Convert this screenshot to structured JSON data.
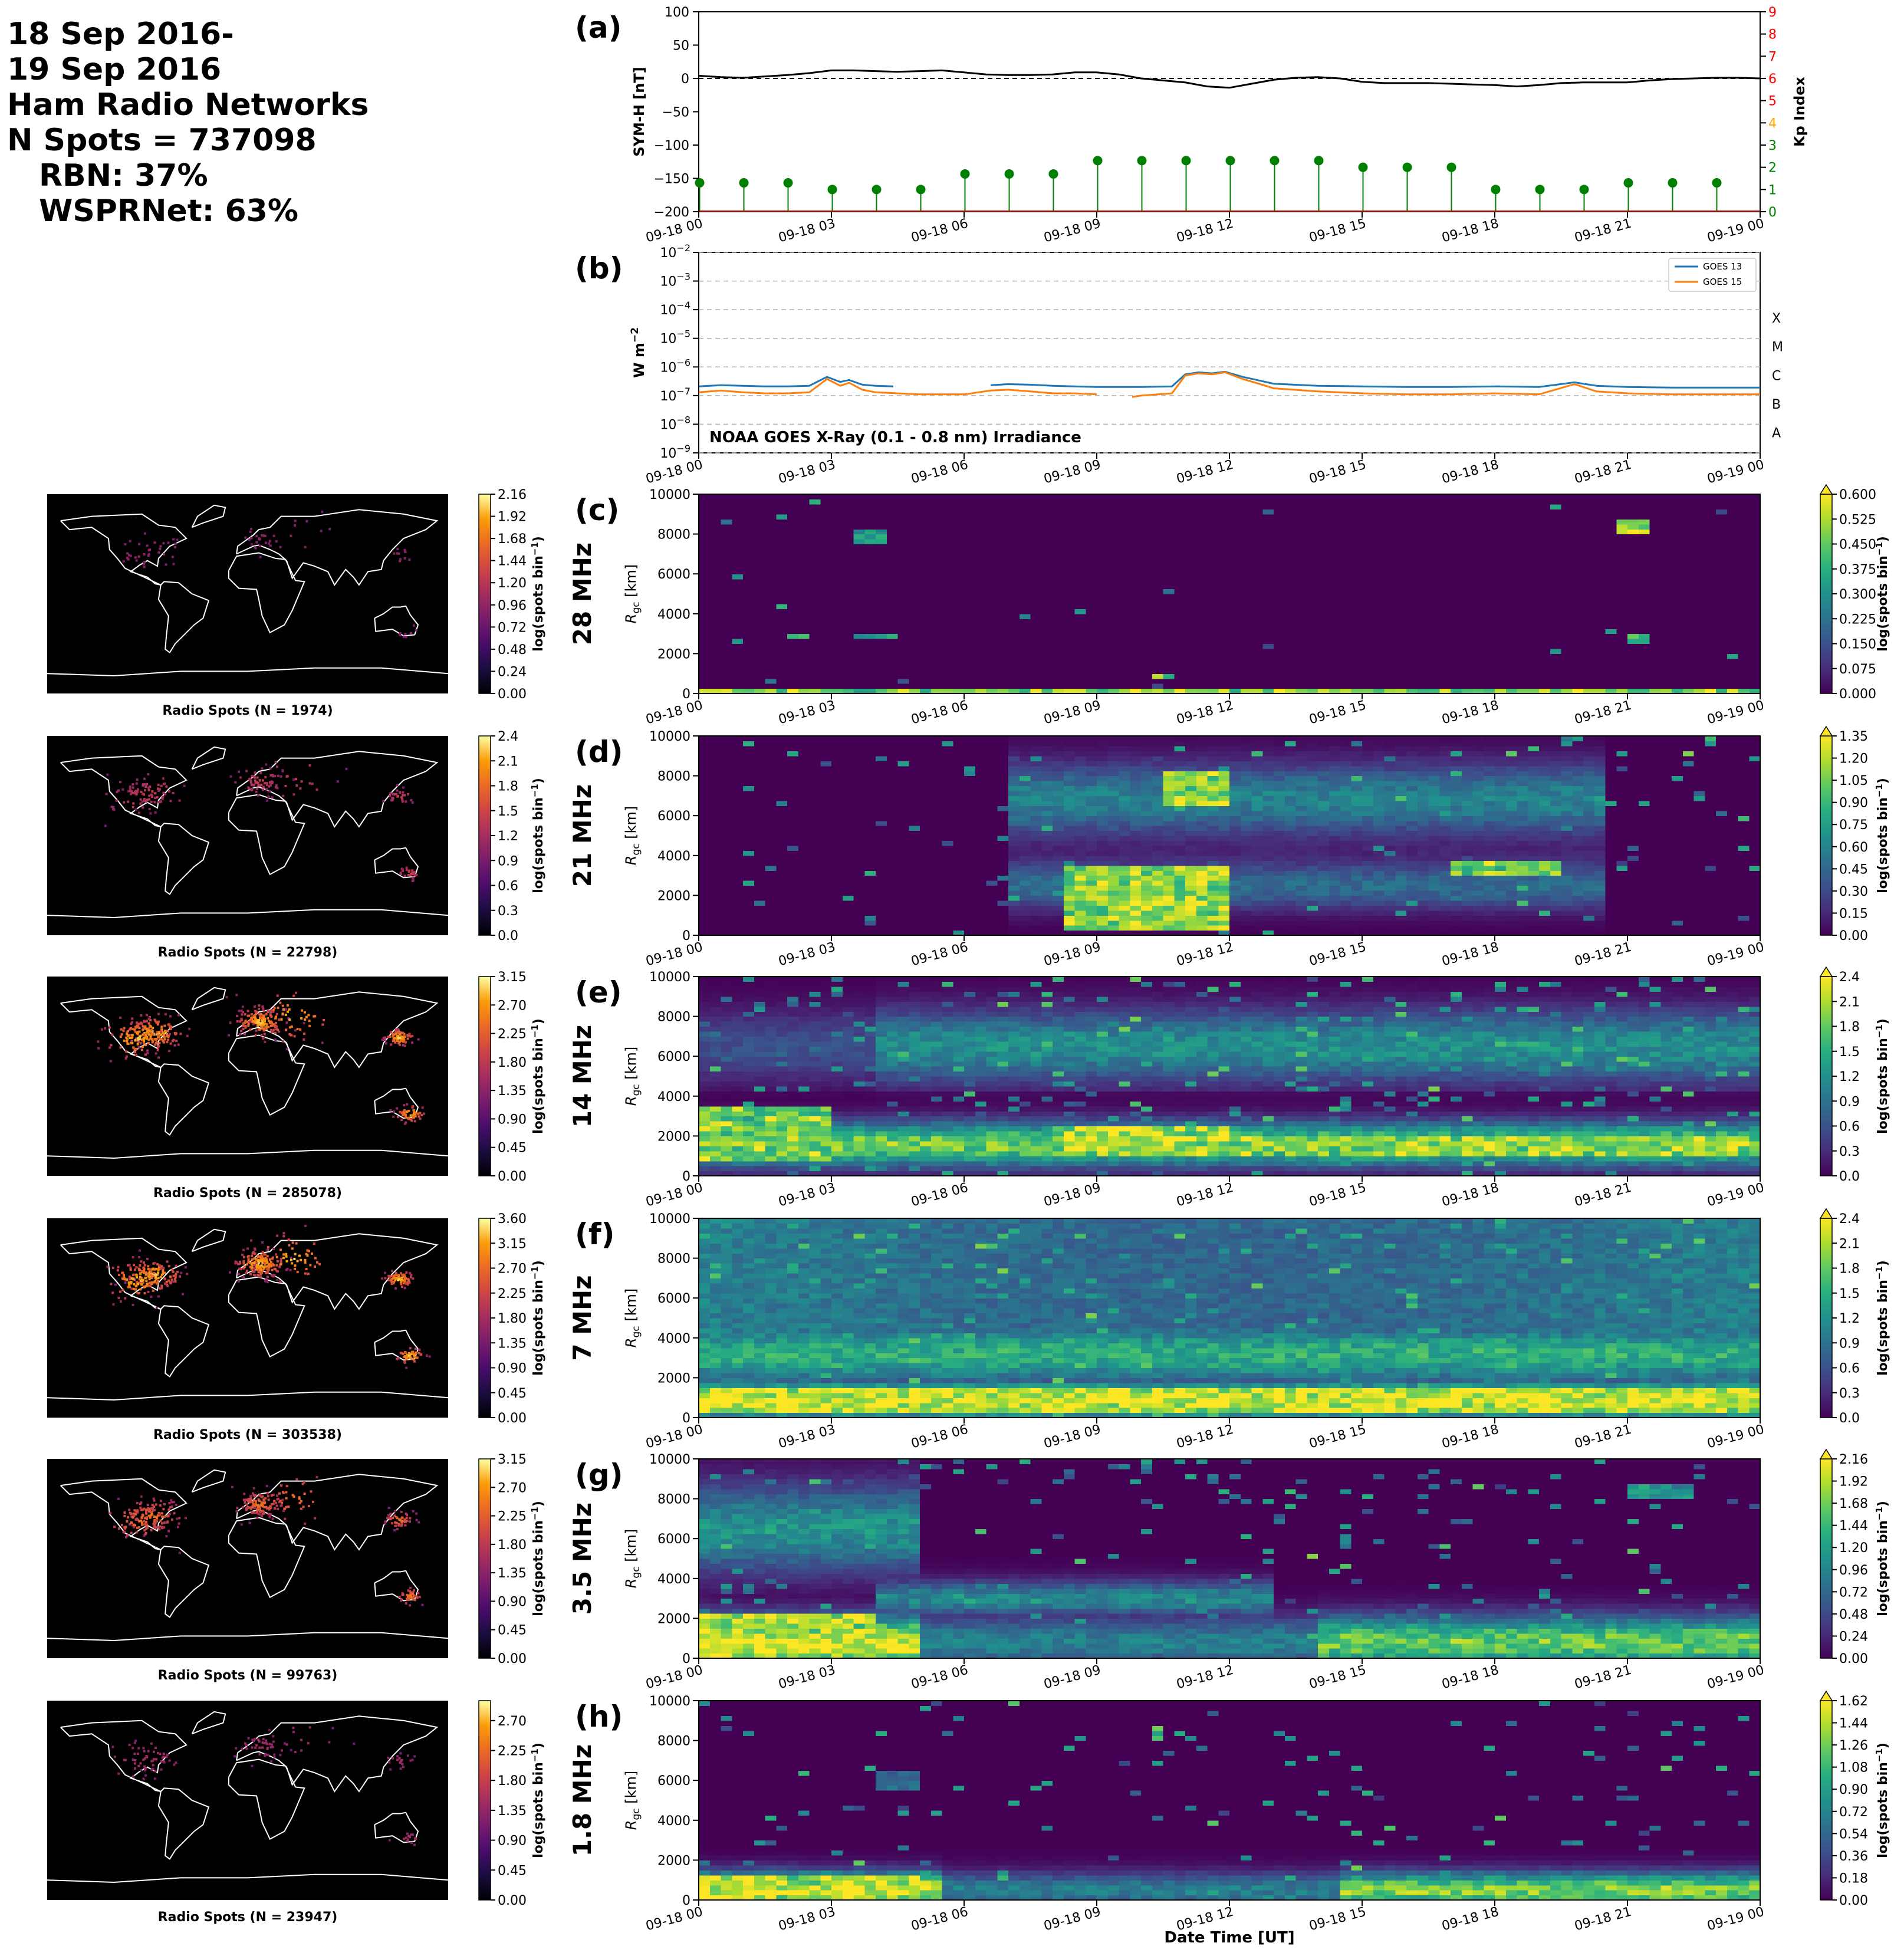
{
  "summary": {
    "line1": "18 Sep 2016-",
    "line2": "19 Sep 2016",
    "line3": "Ham Radio Networks",
    "line4": "N Spots = 737098",
    "line5": "RBN: 37%",
    "line6": "WSPRNet: 63%"
  },
  "colors": {
    "map_background": "#000000",
    "coastline": "#ffffff",
    "viridis_low": "#440154",
    "viridis_high": "#fde725",
    "inferno_low": "#000004",
    "inferno_high": "#fcffa4",
    "symh_line": "#000000",
    "kp_marker": "#008000",
    "kp_axis": "#ff0000",
    "goes13": "#1f77b4",
    "goes15": "#ff7f0e"
  },
  "chart_data": [
    {
      "id": "symh_kp",
      "type": "line",
      "panel_label": "(a)",
      "ylabel": "SYM-H [nT]",
      "ylim": [
        -200,
        100
      ],
      "yticks": [
        100,
        50,
        0,
        -50,
        -100,
        -150,
        -200
      ],
      "ytick_labels": [
        "100",
        "50",
        "0",
        "−50",
        "−100",
        "−150",
        "−200"
      ],
      "y2label": "Kp Index",
      "y2lim": [
        0,
        9
      ],
      "y2ticks": [
        0,
        1,
        2,
        3,
        4,
        5,
        6,
        7,
        8,
        9
      ],
      "y2tick_labels": [
        "0",
        "1",
        "2",
        "3",
        "4",
        "5",
        "6",
        "7",
        "8",
        "9"
      ],
      "y2tick_colors": [
        "#008000",
        "#008000",
        "#008000",
        "#008000",
        "#ffa500",
        "#ff0000",
        "#ff0000",
        "#ff0000",
        "#ff0000",
        "#ff0000"
      ],
      "xticks_hours": [
        0,
        3,
        6,
        9,
        12,
        15,
        18,
        21,
        24
      ],
      "xtick_labels": [
        "09-18 00",
        "09-18 03",
        "09-18 06",
        "09-18 09",
        "09-18 12",
        "09-18 15",
        "09-18 18",
        "09-18 21",
        "09-19 00"
      ],
      "symh": {
        "hours": [
          0,
          0.5,
          1,
          1.5,
          2,
          2.5,
          3,
          3.5,
          4,
          4.5,
          5,
          5.5,
          6,
          6.5,
          7,
          7.5,
          8,
          8.5,
          9,
          9.5,
          10,
          10.5,
          11,
          11.5,
          12,
          12.5,
          13,
          13.5,
          14,
          14.5,
          15,
          15.5,
          16,
          16.5,
          17,
          17.5,
          18,
          18.5,
          19,
          19.5,
          20,
          20.5,
          21,
          21.5,
          22,
          22.5,
          23,
          23.5,
          24
        ],
        "values": [
          4,
          2,
          1,
          3,
          5,
          8,
          12,
          12,
          11,
          10,
          11,
          12,
          9,
          6,
          5,
          5,
          6,
          9,
          9,
          6,
          0,
          -3,
          -6,
          -12,
          -14,
          -8,
          -2,
          1,
          2,
          0,
          -5,
          -7,
          -7,
          -7,
          -8,
          -9,
          -10,
          -12,
          -10,
          -7,
          -6,
          -6,
          -6,
          -3,
          -1,
          0,
          1,
          1,
          0
        ]
      },
      "kp": {
        "hours": [
          0,
          1,
          2,
          3,
          4,
          5,
          6,
          7,
          8,
          9,
          10,
          11,
          12,
          13,
          14,
          15,
          16,
          17,
          18,
          19,
          20,
          21,
          22,
          23
        ],
        "values": [
          1.3,
          1.3,
          1.3,
          1.0,
          1.0,
          1.0,
          1.7,
          1.7,
          1.7,
          2.3,
          2.3,
          2.3,
          2.3,
          2.3,
          2.3,
          2.0,
          2.0,
          2.0,
          1.0,
          1.0,
          1.0,
          1.3,
          1.3,
          1.3
        ]
      }
    },
    {
      "id": "goes_xray",
      "type": "line",
      "panel_label": "(b)",
      "ylabel": "W m",
      "ylabel_sup": "−2",
      "yscale": "log",
      "ylim": [
        1e-09,
        0.01
      ],
      "ytick_exponents": [
        -2,
        -3,
        -4,
        -5,
        -6,
        -7,
        -8,
        -9
      ],
      "flare_classes": [
        {
          "label": "X",
          "exponent": -4
        },
        {
          "label": "M",
          "exponent": -5
        },
        {
          "label": "C",
          "exponent": -6
        },
        {
          "label": "B",
          "exponent": -7
        },
        {
          "label": "A",
          "exponent": -8
        }
      ],
      "annotation": "NOAA GOES X-Ray (0.1 - 0.8 nm) Irradiance",
      "xtick_labels": [
        "09-18 00",
        "09-18 03",
        "09-18 06",
        "09-18 09",
        "09-18 12",
        "09-18 15",
        "09-18 18",
        "09-18 21",
        "09-19 00"
      ],
      "series": [
        {
          "name": "GOES 13",
          "hours": [
            0,
            0.5,
            1,
            1.5,
            2,
            2.5,
            2.9,
            3.2,
            3.4,
            3.7,
            4,
            4.4,
            4.6,
            5,
            6.6,
            7,
            7.5,
            8,
            9,
            10,
            10.7,
            11,
            11.3,
            11.6,
            11.9,
            12.3,
            12.7,
            13,
            14,
            15,
            16,
            17,
            18,
            19,
            19.8,
            20.3,
            21,
            22,
            23,
            24
          ],
          "values": [
            2.1e-07,
            2.3e-07,
            2.2e-07,
            2.1e-07,
            2.1e-07,
            2.2e-07,
            4.5e-07,
            3e-07,
            3.5e-07,
            2.4e-07,
            2.2e-07,
            2.1e-07,
            null,
            null,
            2.3e-07,
            2.5e-07,
            2.4e-07,
            2.2e-07,
            2e-07,
            2e-07,
            2.1e-07,
            5.5e-07,
            6.5e-07,
            6e-07,
            6.8e-07,
            4.5e-07,
            3.3e-07,
            2.6e-07,
            2.2e-07,
            2.1e-07,
            2e-07,
            2e-07,
            2.1e-07,
            2e-07,
            2.9e-07,
            2.2e-07,
            2e-07,
            1.9e-07,
            1.9e-07,
            1.9e-07
          ]
        },
        {
          "name": "GOES 15",
          "hours": [
            0,
            0.5,
            1,
            1.5,
            2,
            2.5,
            2.9,
            3.2,
            3.4,
            3.7,
            4,
            4.5,
            5,
            5.5,
            6,
            6.6,
            7,
            7.5,
            8,
            8.5,
            9,
            9.4,
            9.8,
            10,
            10.7,
            11,
            11.3,
            11.6,
            11.9,
            12.3,
            12.7,
            13,
            14,
            15,
            16,
            17,
            18,
            19,
            19.8,
            20.3,
            21,
            22,
            23,
            24
          ],
          "values": [
            1.3e-07,
            1.5e-07,
            1.3e-07,
            1.2e-07,
            1.2e-07,
            1.3e-07,
            3.8e-07,
            2.2e-07,
            2.8e-07,
            1.6e-07,
            1.3e-07,
            1.2e-07,
            1.1e-07,
            1.1e-07,
            1.1e-07,
            1.5e-07,
            1.6e-07,
            1.4e-07,
            1.2e-07,
            1.2e-07,
            1.1e-07,
            null,
            9e-08,
            1e-07,
            1.2e-07,
            5e-07,
            6e-07,
            5.5e-07,
            6.5e-07,
            3.8e-07,
            2.5e-07,
            1.8e-07,
            1.4e-07,
            1.2e-07,
            1.1e-07,
            1.1e-07,
            1.2e-07,
            1.1e-07,
            2.5e-07,
            1.4e-07,
            1.2e-07,
            1.1e-07,
            1.1e-07,
            1.1e-07
          ]
        }
      ]
    },
    {
      "id": "band_28",
      "type": "heatmap",
      "panel_label": "(c)",
      "band_label": "28 MHz",
      "ylabel": "R",
      "ylabel_sub": "gc",
      "ylabel_unit": " [km]",
      "ylim": [
        0,
        10000
      ],
      "yticks": [
        0,
        2000,
        4000,
        6000,
        8000,
        10000
      ],
      "cbar_label": "log(spots bin",
      "cbar_label_sup": "−1",
      "cbar_label_close": ")",
      "cbar_ticks": [
        "0.000",
        "0.075",
        "0.150",
        "0.225",
        "0.300",
        "0.375",
        "0.450",
        "0.525",
        "0.600"
      ],
      "cbar_max": 0.6,
      "map_caption": "Radio Spots (N = 1974)",
      "map_cbar_ticks": [
        "0.00",
        "0.24",
        "0.48",
        "0.72",
        "0.96",
        "1.20",
        "1.44",
        "1.68",
        "1.92",
        "2.16"
      ],
      "map_cbar_max": 2.16,
      "profile": "sparse_high",
      "density": 0.05,
      "features": [
        {
          "h0": 0,
          "h1": 24,
          "r0": 0,
          "r1": 250,
          "v": 0.55
        },
        {
          "h0": 3.5,
          "h1": 4.2,
          "r0": 7600,
          "r1": 8200,
          "v": 0.4
        },
        {
          "h0": 20.8,
          "h1": 21.6,
          "r0": 8100,
          "r1": 8800,
          "v": 0.6
        },
        {
          "h0": 2.0,
          "h1": 2.6,
          "r0": 2800,
          "r1": 3100,
          "v": 0.5
        },
        {
          "h0": 3.4,
          "h1": 4.4,
          "r0": 2800,
          "r1": 3100,
          "v": 0.4
        },
        {
          "h0": 10.3,
          "h1": 10.8,
          "r0": 700,
          "r1": 1100,
          "v": 0.6
        },
        {
          "h0": 21.0,
          "h1": 21.6,
          "r0": 2500,
          "r1": 2900,
          "v": 0.45
        }
      ]
    },
    {
      "id": "band_21",
      "type": "heatmap",
      "panel_label": "(d)",
      "band_label": "21 MHz",
      "ylabel": "R",
      "ylabel_sub": "gc",
      "ylabel_unit": " [km]",
      "ylim": [
        0,
        10000
      ],
      "yticks": [
        0,
        2000,
        4000,
        6000,
        8000,
        10000
      ],
      "cbar_label": "log(spots bin",
      "cbar_label_sup": "−1",
      "cbar_label_close": ")",
      "cbar_ticks": [
        "0.00",
        "0.15",
        "0.30",
        "0.45",
        "0.60",
        "0.75",
        "0.90",
        "1.05",
        "1.20",
        "1.35"
      ],
      "cbar_max": 1.35,
      "map_caption": "Radio Spots (N = 22798)",
      "map_cbar_ticks": [
        "0.0",
        "0.3",
        "0.6",
        "0.9",
        "1.2",
        "1.5",
        "1.8",
        "2.1",
        "2.4"
      ],
      "map_cbar_max": 2.4,
      "profile": "day_band",
      "density": 0.25,
      "features": [
        {
          "h0": 8.3,
          "h1": 11.9,
          "r0": 300,
          "r1": 3600,
          "v": 1.3
        },
        {
          "h0": 10.6,
          "h1": 11.9,
          "r0": 6600,
          "r1": 8200,
          "v": 1.3
        },
        {
          "h0": 17.0,
          "h1": 19.5,
          "r0": 3000,
          "r1": 3700,
          "v": 1.2
        }
      ]
    },
    {
      "id": "band_14",
      "type": "heatmap",
      "panel_label": "(e)",
      "band_label": "14 MHz",
      "ylabel": "R",
      "ylabel_sub": "gc",
      "ylabel_unit": " [km]",
      "ylim": [
        0,
        10000
      ],
      "yticks": [
        0,
        2000,
        4000,
        6000,
        8000,
        10000
      ],
      "cbar_label": "log(spots bin",
      "cbar_label_sup": "−1",
      "cbar_label_close": ")",
      "cbar_ticks": [
        "0.0",
        "0.3",
        "0.6",
        "0.9",
        "1.2",
        "1.5",
        "1.8",
        "2.1",
        "2.4"
      ],
      "cbar_max": 2.4,
      "map_caption": "Radio Spots (N = 285078)",
      "map_cbar_ticks": [
        "0.00",
        "0.45",
        "0.90",
        "1.35",
        "1.80",
        "2.25",
        "2.70",
        "3.15"
      ],
      "map_cbar_max": 3.15,
      "profile": "mid_band",
      "density": 0.8,
      "features": [
        {
          "h0": 8,
          "h1": 12,
          "r0": 900,
          "r1": 2400,
          "v": 2.4
        },
        {
          "h0": 12,
          "h1": 24,
          "r0": 900,
          "r1": 2000,
          "v": 2.2
        },
        {
          "h0": 0,
          "h1": 3,
          "r0": 800,
          "r1": 3500,
          "v": 2.1
        }
      ]
    },
    {
      "id": "band_7",
      "type": "heatmap",
      "panel_label": "(f)",
      "band_label": "7 MHz",
      "ylabel": "R",
      "ylabel_sub": "gc",
      "ylabel_unit": " [km]",
      "ylim": [
        0,
        10000
      ],
      "yticks": [
        0,
        2000,
        4000,
        6000,
        8000,
        10000
      ],
      "cbar_label": "log(spots bin",
      "cbar_label_sup": "−1",
      "cbar_label_close": ")",
      "cbar_ticks": [
        "0.0",
        "0.3",
        "0.6",
        "0.9",
        "1.2",
        "1.5",
        "1.8",
        "2.1",
        "2.4"
      ],
      "cbar_max": 2.4,
      "map_caption": "Radio Spots (N = 303538)",
      "map_cbar_ticks": [
        "0.00",
        "0.45",
        "0.90",
        "1.35",
        "1.80",
        "2.25",
        "2.70",
        "3.15",
        "3.60"
      ],
      "map_cbar_max": 3.6,
      "profile": "low_band",
      "density": 0.9,
      "features": [
        {
          "h0": 0,
          "h1": 24,
          "r0": 200,
          "r1": 1500,
          "v": 2.4
        }
      ]
    },
    {
      "id": "band_3_5",
      "type": "heatmap",
      "panel_label": "(g)",
      "band_label": "3.5 MHz",
      "ylabel": "R",
      "ylabel_sub": "gc",
      "ylabel_unit": " [km]",
      "ylim": [
        0,
        10000
      ],
      "yticks": [
        0,
        2000,
        4000,
        6000,
        8000,
        10000
      ],
      "cbar_label": "log(spots bin",
      "cbar_label_sup": "−1",
      "cbar_label_close": ")",
      "cbar_ticks": [
        "0.00",
        "0.24",
        "0.48",
        "0.72",
        "0.96",
        "1.20",
        "1.44",
        "1.68",
        "1.92",
        "2.16"
      ],
      "cbar_max": 2.16,
      "map_caption": "Radio Spots (N = 99763)",
      "map_cbar_ticks": [
        "0.00",
        "0.45",
        "0.90",
        "1.35",
        "1.80",
        "2.25",
        "2.70",
        "3.15"
      ],
      "map_cbar_max": 3.15,
      "profile": "night_band",
      "density": 0.5,
      "features": [
        {
          "h0": 0,
          "h1": 4,
          "r0": 0,
          "r1": 2200,
          "v": 2.16
        },
        {
          "h0": 21,
          "h1": 22.5,
          "r0": 8000,
          "r1": 8800,
          "v": 1.2
        }
      ]
    },
    {
      "id": "band_1_8",
      "type": "heatmap",
      "panel_label": "(h)",
      "band_label": "1.8 MHz",
      "ylabel": "R",
      "ylabel_sub": "gc",
      "ylabel_unit": " [km]",
      "ylim": [
        0,
        10000
      ],
      "yticks": [
        0,
        2000,
        4000,
        6000,
        8000,
        10000
      ],
      "cbar_label": "log(spots bin",
      "cbar_label_sup": "−1",
      "cbar_label_close": ")",
      "cbar_ticks": [
        "0.00",
        "0.18",
        "0.36",
        "0.54",
        "0.72",
        "0.90",
        "1.08",
        "1.26",
        "1.44",
        "1.62"
      ],
      "cbar_max": 1.62,
      "xlabel": "Date Time [UT]",
      "map_caption": "Radio Spots (N = 23947)",
      "map_cbar_ticks": [
        "0.00",
        "0.45",
        "0.90",
        "1.35",
        "1.80",
        "2.25",
        "2.70"
      ],
      "map_cbar_max": 3.0,
      "profile": "very_low",
      "density": 0.3,
      "features": [
        {
          "h0": 0,
          "h1": 5,
          "r0": 0,
          "r1": 1200,
          "v": 1.62
        },
        {
          "h0": 4.0,
          "h1": 5.0,
          "r0": 5500,
          "r1": 6400,
          "v": 0.6
        }
      ]
    }
  ]
}
